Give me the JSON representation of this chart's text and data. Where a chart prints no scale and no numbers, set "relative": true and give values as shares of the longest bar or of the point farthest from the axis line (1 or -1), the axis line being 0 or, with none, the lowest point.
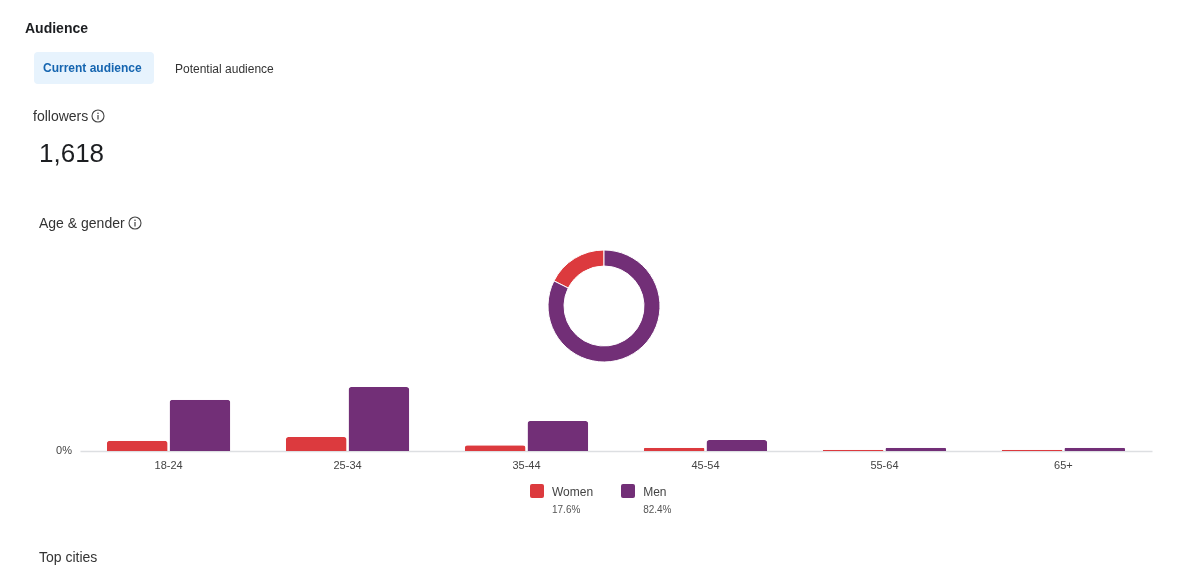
{
  "chart_data": [
    {
      "type": "other",
      "title": "Audience",
      "annotations": [
        "Current audience",
        "Potential audience",
        "followers",
        "1,618",
        "Age & gender",
        "Top cities"
      ]
    },
    {
      "type": "donut",
      "categories": [
        "Women",
        "Men"
      ],
      "values": [
        17.6,
        82.4
      ],
      "colors": [
        "#dc3a3e",
        "#722f77"
      ],
      "value_labels": [
        "17.6%",
        "82.4%"
      ],
      "legend": "bottom"
    },
    {
      "type": "bar",
      "relative": true,
      "categories": [
        "18-24",
        "25-34",
        "35-44",
        "45-54",
        "55-64",
        "65+"
      ],
      "annotations": [
        "0%"
      ],
      "series": [
        {
          "color": "#dc3a3e",
          "values": [
            0.16,
            0.22,
            0.09,
            0.05,
            0.02,
            0.02
          ]
        },
        {
          "color": "#722f77",
          "values": [
            0.8,
            1,
            0.47,
            0.17,
            0.05,
            0.05
          ]
        }
      ]
    }
  ]
}
